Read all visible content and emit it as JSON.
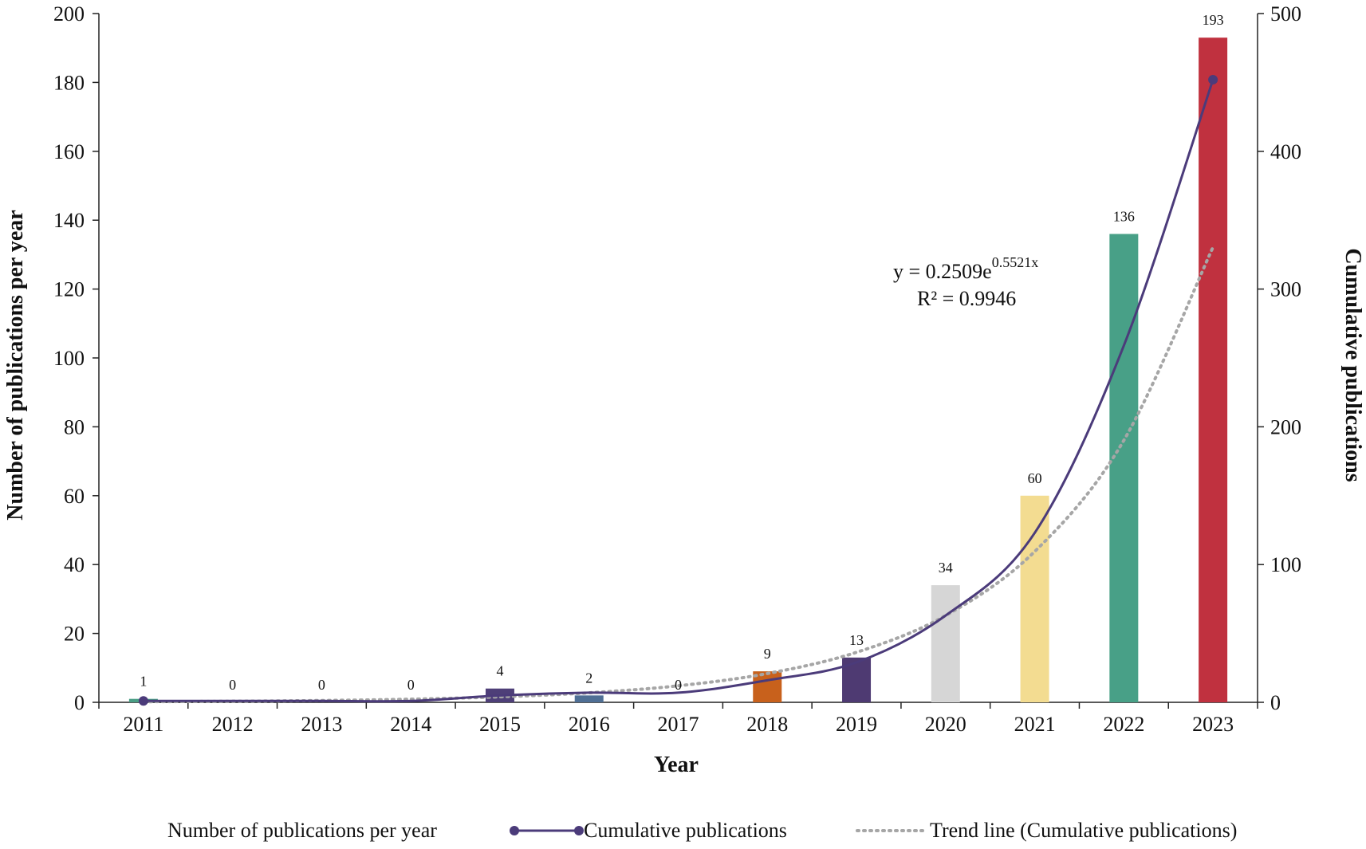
{
  "chart_data": {
    "type": "bar",
    "categories": [
      "2011",
      "2012",
      "2013",
      "2014",
      "2015",
      "2016",
      "2017",
      "2018",
      "2019",
      "2020",
      "2021",
      "2022",
      "2023"
    ],
    "series": [
      {
        "name": "Number of publications per year",
        "type": "bar",
        "axis": "left",
        "values": [
          1,
          0,
          0,
          0,
          4,
          2,
          0,
          9,
          13,
          34,
          60,
          136,
          193
        ],
        "colors": [
          "#4a9e85",
          "#4a9e85",
          "#4a9e85",
          "#4a9e85",
          "#4e3f78",
          "#4f6f95",
          "#4f6f95",
          "#c8611c",
          "#4e3a72",
          "#d6d6d6",
          "#f3dc91",
          "#48a087",
          "#c0313f"
        ]
      },
      {
        "name": "Cumulative publications",
        "type": "line",
        "axis": "right",
        "color": "#4b3b7a",
        "values": [
          1,
          1,
          1,
          1,
          5,
          7,
          7,
          16,
          29,
          63,
          123,
          259,
          452
        ],
        "markers_at": [
          0,
          12
        ]
      },
      {
        "name": "Trend line (Cumulative publications)",
        "type": "line",
        "axis": "right",
        "style": "dotted",
        "color": "#a6a6a6",
        "values": [
          0.44,
          0.76,
          1.32,
          2.29,
          3.98,
          6.92,
          12.0,
          20.9,
          36.3,
          63.0,
          109.5,
          190.2,
          330.4
        ]
      }
    ],
    "xlabel": "Year",
    "ylabel": "Number of publications per year",
    "y2label": "Cumulative publications",
    "ylim": [
      0,
      200
    ],
    "y2lim": [
      0,
      500
    ],
    "yticks": [
      "0",
      "20",
      "40",
      "60",
      "80",
      "100",
      "120",
      "140",
      "160",
      "180",
      "200"
    ],
    "y2ticks": [
      "0",
      "100",
      "200",
      "300",
      "400",
      "500"
    ],
    "annotation": {
      "equation_prefix": "y = 0.2509e",
      "equation_exponent": "0.5521x",
      "r_squared": "R² = 0.9946"
    },
    "legend": {
      "position": "bottom",
      "items": [
        "Number of publications per year",
        "Cumulative publications",
        "Trend line (Cumulative publications)"
      ]
    }
  }
}
